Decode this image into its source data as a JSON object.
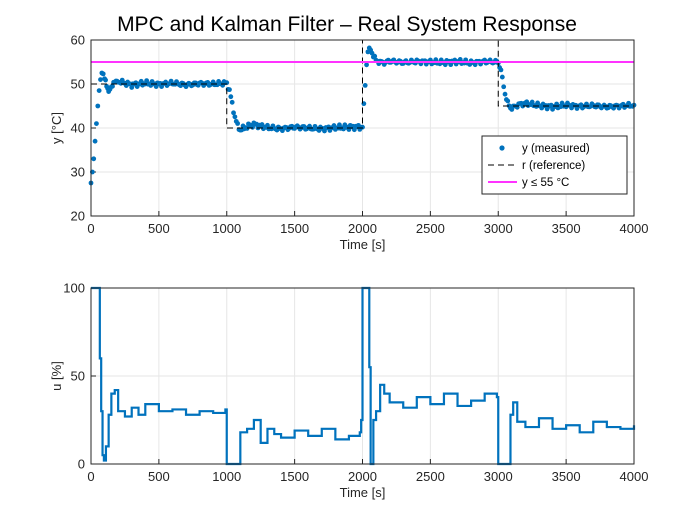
{
  "figure": {
    "title": "MPC and Kalman Filter – Real System Response"
  },
  "chart_data": [
    {
      "type": "line",
      "title": "MPC and Kalman Filter – Real System Response",
      "xlabel": "Time [s]",
      "ylabel": "y [°C]",
      "xlim": [
        0,
        4000
      ],
      "ylim": [
        20,
        60
      ],
      "xticks": [
        "0",
        "500",
        "1000",
        "1500",
        "2000",
        "2500",
        "3000",
        "3500",
        "4000"
      ],
      "yticks": [
        "20",
        "30",
        "40",
        "50",
        "60"
      ],
      "grid": true,
      "legend_position": "right",
      "series": [
        {
          "name": "y (measured)",
          "style": "markers",
          "color": "#0072BD",
          "x": [
            0,
            10,
            20,
            30,
            40,
            50,
            60,
            70,
            80,
            90,
            100,
            115,
            130,
            150,
            175,
            200,
            250,
            300,
            400,
            500,
            600,
            700,
            800,
            900,
            1000,
            1020,
            1040,
            1060,
            1080,
            1100,
            1150,
            1200,
            1300,
            1400,
            1500,
            1600,
            1700,
            1800,
            1900,
            2000,
            2010,
            2020,
            2030,
            2040,
            2060,
            2080,
            2100,
            2150,
            2200,
            2300,
            2400,
            2500,
            2600,
            2700,
            2800,
            2900,
            3000,
            3020,
            3040,
            3060,
            3080,
            3100,
            3150,
            3200,
            3300,
            3400,
            3500,
            3600,
            3700,
            3800,
            3900,
            4000
          ],
          "y": [
            27.5,
            30,
            33,
            37,
            41,
            45,
            48.5,
            51,
            52.5,
            52.3,
            51.2,
            49.5,
            48.3,
            49,
            50.5,
            50.6,
            50.2,
            49.8,
            50.2,
            49.9,
            50.2,
            49.8,
            50.1,
            50,
            50.2,
            48.5,
            45.5,
            42.5,
            40.5,
            39.6,
            40.3,
            40.8,
            40.1,
            39.8,
            40.2,
            40,
            39.8,
            40.1,
            40.2,
            40.2,
            45,
            50,
            54.5,
            57.5,
            57.8,
            56.5,
            55.3,
            54.8,
            55.2,
            54.9,
            55.1,
            55,
            54.9,
            55.1,
            54.8,
            55.1,
            55,
            53,
            49.5,
            46.5,
            45,
            44.5,
            45.3,
            45.6,
            45.1,
            44.8,
            45.2,
            44.9,
            45.1,
            44.8,
            45,
            45.2
          ]
        },
        {
          "name": "r (reference)",
          "style": "dashed",
          "color": "#000000",
          "x": [
            0,
            1000,
            1000,
            2000,
            2000,
            3000,
            3000,
            4000
          ],
          "y": [
            50,
            50,
            40,
            40,
            60,
            60,
            45,
            45
          ]
        },
        {
          "name": "y ≤ 55 °C",
          "style": "solid",
          "color": "#FF33FF",
          "x": [
            0,
            4000
          ],
          "y": [
            55,
            55
          ]
        }
      ]
    },
    {
      "type": "line",
      "xlabel": "Time [s]",
      "ylabel": "u [%]",
      "xlim": [
        0,
        4000
      ],
      "ylim": [
        0,
        100
      ],
      "xticks": [
        "0",
        "500",
        "1000",
        "1500",
        "2000",
        "2500",
        "3000",
        "3500",
        "4000"
      ],
      "yticks": [
        "0",
        "50",
        "100"
      ],
      "grid": true,
      "series": [
        {
          "name": "",
          "style": "stairs",
          "color": "#0072BD",
          "x": [
            0,
            60,
            65,
            75,
            85,
            95,
            110,
            130,
            150,
            175,
            200,
            250,
            300,
            350,
            400,
            500,
            600,
            700,
            800,
            900,
            990,
            1000,
            1090,
            1100,
            1150,
            1200,
            1250,
            1300,
            1350,
            1400,
            1500,
            1600,
            1700,
            1800,
            1900,
            1980,
            1990,
            2000,
            2040,
            2050,
            2060,
            2080,
            2100,
            2130,
            2160,
            2200,
            2300,
            2400,
            2500,
            2600,
            2700,
            2800,
            2900,
            2990,
            3000,
            3080,
            3090,
            3110,
            3140,
            3200,
            3300,
            3400,
            3500,
            3600,
            3700,
            3800,
            3900,
            4000
          ],
          "y": [
            100,
            100,
            60,
            30,
            5,
            2,
            10,
            28,
            40,
            42,
            30,
            27,
            32,
            28,
            34,
            30,
            31,
            28,
            30,
            29,
            31,
            0,
            0,
            18,
            20,
            25,
            12,
            20,
            17,
            15,
            19,
            16,
            20,
            14,
            16,
            18,
            25,
            100,
            100,
            55,
            0,
            25,
            30,
            45,
            40,
            35,
            32,
            38,
            34,
            40,
            33,
            36,
            40,
            38,
            0,
            0,
            28,
            35,
            24,
            21,
            26,
            20,
            22,
            18,
            24,
            21,
            20,
            22
          ]
        }
      ]
    }
  ]
}
